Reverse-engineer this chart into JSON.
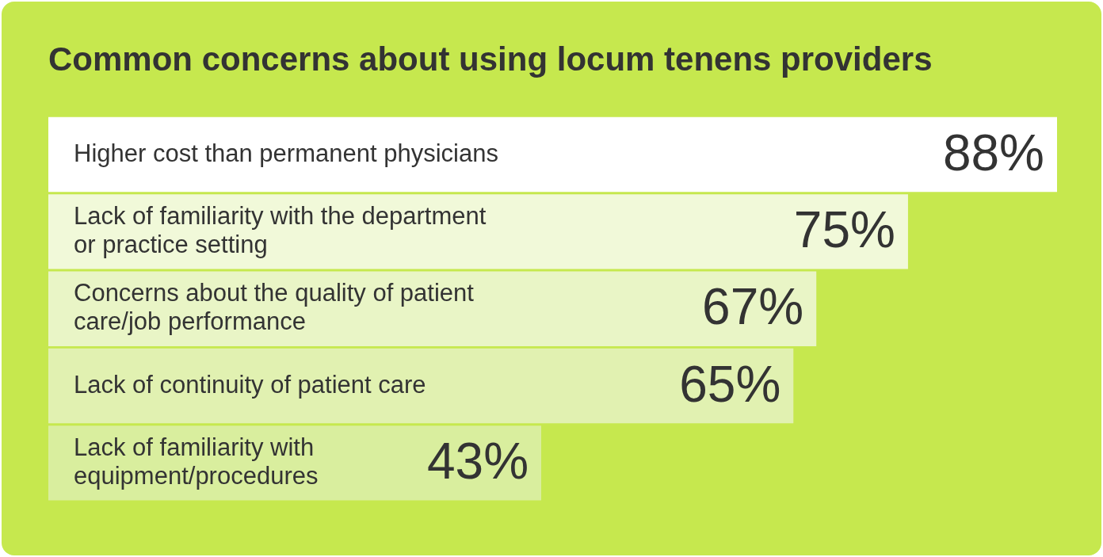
{
  "chart_data": {
    "type": "bar",
    "orientation": "horizontal",
    "title": "Common concerns about using locum tenens providers",
    "categories": [
      "Higher cost than permanent physicians",
      "Lack of familiarity with the department or practice setting",
      "Concerns about the quality of patient care/job performance",
      "Lack of continuity of patient care",
      "Lack of familiarity with equipment/procedures"
    ],
    "values": [
      88,
      75,
      67,
      65,
      43
    ],
    "value_labels": [
      "88%",
      "75%",
      "67%",
      "65%",
      "43%"
    ],
    "colors": [
      "#ffffff",
      "#f1f9d9",
      "#e9f5c6",
      "#e1f1b1",
      "#d9ee9e"
    ],
    "legend": false
  }
}
